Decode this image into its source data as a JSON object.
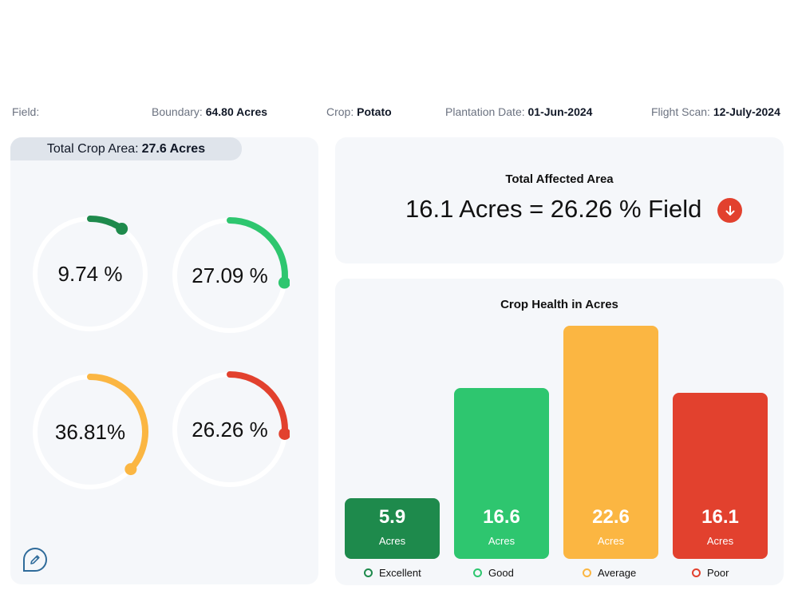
{
  "info": {
    "field_label": "Field:",
    "boundary_label": "Boundary:",
    "boundary_value": "64.80 Acres",
    "crop_label": "Crop:",
    "crop_value": "Potato",
    "plantation_label": "Plantation Date:",
    "plantation_value": "01-Jun-2024",
    "flight_label": "Flight Scan:",
    "flight_value": "12-July-2024"
  },
  "left_panel": {
    "crop_area_label": "Total Crop Area:",
    "crop_area_value": "27.6 Acres",
    "gauges": [
      {
        "text": "9.74 %",
        "percent": 9.74,
        "color": "#1e8a4c"
      },
      {
        "text": "27.09 %",
        "percent": 27.09,
        "color": "#2ec66f"
      },
      {
        "text": "36.81%",
        "percent": 36.81,
        "color": "#fbb642"
      },
      {
        "text": "26.26 %",
        "percent": 26.26,
        "color": "#e2412e"
      }
    ],
    "edit_icon": "pencil-icon"
  },
  "affected": {
    "title": "Total Affected Area",
    "value": "16.1 Acres = 26.26 % Field",
    "icon": "arrow-down-icon",
    "icon_color": "#e2412e"
  },
  "chart_data": {
    "type": "bar",
    "title": "Crop Health in Acres",
    "categories": [
      "Excellent",
      "Good",
      "Average",
      "Poor"
    ],
    "values": [
      5.9,
      16.6,
      22.6,
      16.1
    ],
    "value_labels": [
      "5.9",
      "16.6",
      "22.6",
      "16.1"
    ],
    "unit_label": "Acres",
    "colors": [
      "#1e8a4c",
      "#2ec66f",
      "#fbb642",
      "#e2412e"
    ],
    "xlabel": "",
    "ylabel": ""
  }
}
